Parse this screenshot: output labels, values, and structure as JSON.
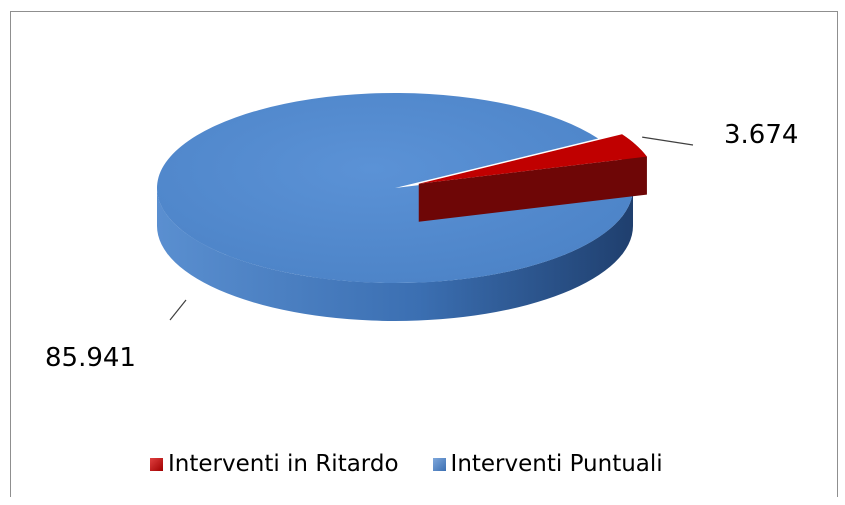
{
  "chart_data": {
    "type": "pie",
    "style": "3d",
    "slices": [
      {
        "label": "Interventi in Ritardo",
        "value": 3.674,
        "display": "3.674",
        "color": "#C00000"
      },
      {
        "label": "Interventi Puntuali",
        "value": 85.941,
        "display": "85.941",
        "color": "#4F81BD"
      }
    ],
    "legend_position": "bottom"
  }
}
